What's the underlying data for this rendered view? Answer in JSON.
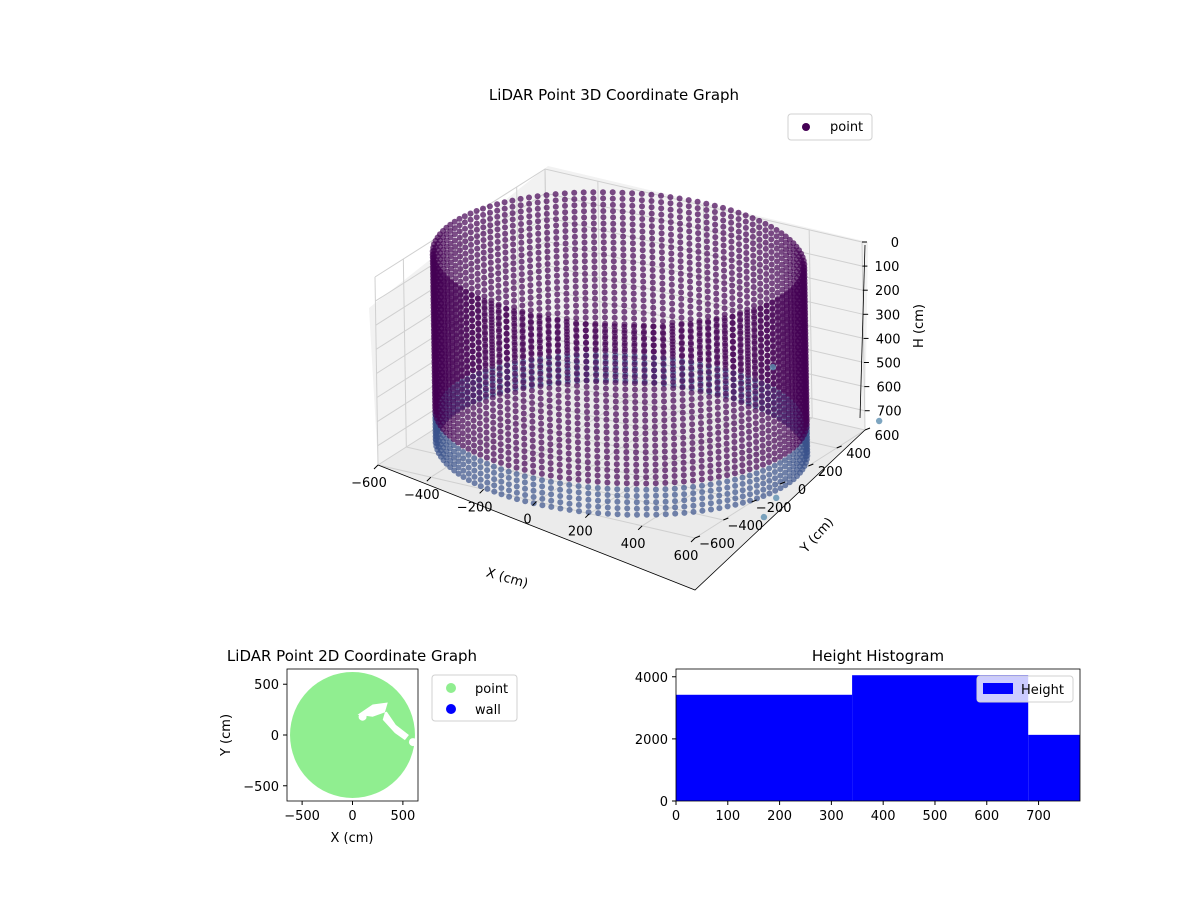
{
  "chart_data": [
    {
      "type": "scatter3d",
      "title": "LiDAR Point 3D Coordinate Graph",
      "xlabel": "X (cm)",
      "ylabel": "Y (cm)",
      "zlabel": "H (cm)",
      "xlim": [
        -600,
        600
      ],
      "ylim": [
        -600,
        600
      ],
      "zlim": [
        0,
        780
      ],
      "z_inverted": true,
      "x_ticks": [
        "-600",
        "-400",
        "-200",
        "0",
        "200",
        "400",
        "600"
      ],
      "y_ticks": [
        "-600",
        "-400",
        "-200",
        "0",
        "200",
        "400",
        "600"
      ],
      "z_ticks": [
        "0",
        "100",
        "200",
        "300",
        "400",
        "500",
        "600",
        "700"
      ],
      "legend": {
        "position": "top-right",
        "entries": [
          "point"
        ]
      },
      "colormap": "viridis",
      "colors": {
        "point": "#440154",
        "mid": "#3b528b",
        "light": "#5c8fb0"
      },
      "series": [
        {
          "name": "point",
          "description": "cylindrical wall of points, radius ~620 cm, height 0-780 cm",
          "outliers": [
            [
              650,
              -120,
              780
            ],
            [
              600,
              700,
              780
            ],
            [
              700,
              -300,
              780
            ],
            [
              580,
              0,
              300
            ]
          ]
        }
      ]
    },
    {
      "type": "scatter",
      "title": "LiDAR Point 2D Coordinate Graph",
      "xlabel": "X (cm)",
      "ylabel": "Y (cm)",
      "xlim": [
        -650,
        650
      ],
      "ylim": [
        -650,
        650
      ],
      "x_ticks": [
        "−500",
        "0",
        "500"
      ],
      "y_ticks": [
        "−500",
        "0",
        "500"
      ],
      "legend": {
        "position": "outside-right",
        "entries": [
          "point",
          "wall"
        ]
      },
      "colors": {
        "point": "#90ee90",
        "wall": "#0000ff"
      },
      "series": [
        {
          "name": "point",
          "description": "filled disc radius ~620 cm"
        },
        {
          "name": "wall",
          "values": []
        }
      ]
    },
    {
      "type": "bar",
      "title": "Height Histogram",
      "xlabel": "",
      "ylabel": "",
      "xlim": [
        0,
        780
      ],
      "ylim": [
        0,
        4250
      ],
      "x_ticks": [
        "0",
        "100",
        "200",
        "300",
        "400",
        "500",
        "600",
        "700"
      ],
      "y_ticks": [
        "0",
        "2000",
        "4000"
      ],
      "legend": {
        "position": "top-right",
        "entries": [
          "Height"
        ]
      },
      "colors": {
        "Height": "#0000ff"
      },
      "bins": [
        {
          "from": 0,
          "to": 340,
          "count": 3420
        },
        {
          "from": 340,
          "to": 680,
          "count": 4050
        },
        {
          "from": 680,
          "to": 780,
          "count": 2130
        }
      ]
    }
  ]
}
